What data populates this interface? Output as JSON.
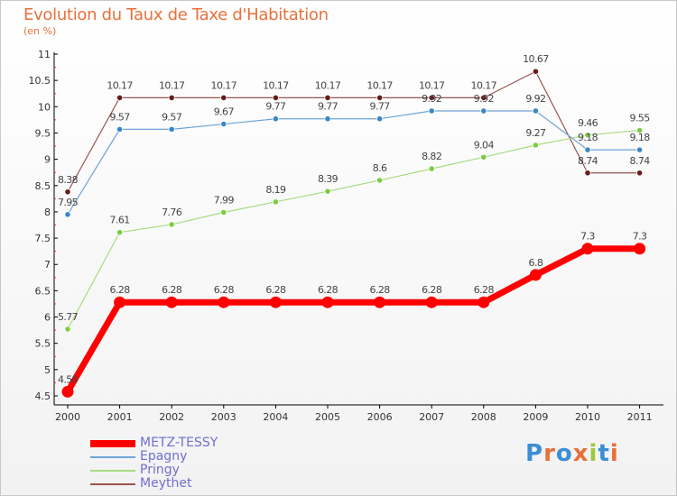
{
  "title": "Evolution du Taux de Taxe d'Habitation",
  "subtitle": "(en %)",
  "logo": {
    "text": "Proxiti",
    "colors": [
      "#3a8fd6",
      "#e8703a",
      "#3a8fd6",
      "#e8703a",
      "#9cc83a",
      "#3a8fd6",
      "#e8703a"
    ]
  },
  "chart_data": {
    "type": "line",
    "title": "Evolution du Taux de Taxe d'Habitation",
    "ylabel": "(en %)",
    "xlabel": "",
    "x": [
      "2000",
      "2001",
      "2002",
      "2003",
      "2004",
      "2005",
      "2006",
      "2007",
      "2008",
      "2009",
      "2010",
      "2011"
    ],
    "ylim": [
      4.5,
      11
    ],
    "yticks": [
      "4.5",
      "5",
      "5.5",
      "6",
      "6.5",
      "7",
      "7.5",
      "8",
      "8.5",
      "9",
      "9.5",
      "10",
      "10.5",
      "11"
    ],
    "series": [
      {
        "name": "METZ-TESSY",
        "color": "#ff0000",
        "values": [
          4.58,
          6.28,
          6.28,
          6.28,
          6.28,
          6.28,
          6.28,
          6.28,
          6.28,
          6.8,
          7.3,
          7.3
        ],
        "labels": [
          "4.58",
          "6.28",
          "6.28",
          "6.28",
          "6.28",
          "6.28",
          "6.28",
          "6.28",
          "6.28",
          "6.8",
          "7.3",
          "7.3"
        ]
      },
      {
        "name": "Epagny",
        "color": "#6fa3d8",
        "marker": "#3a86c8",
        "values": [
          7.95,
          9.57,
          9.57,
          9.67,
          9.77,
          9.77,
          9.77,
          9.92,
          9.92,
          9.92,
          9.18,
          9.18
        ],
        "labels": [
          "7.95",
          "9.57",
          "9.57",
          "9.67",
          "9.77",
          "9.77",
          "9.77",
          "9.92",
          "9.92",
          "9.92",
          "9.18",
          "9.18"
        ]
      },
      {
        "name": "Pringy",
        "color": "#a8dc80",
        "marker": "#7ccc40",
        "values": [
          5.77,
          7.61,
          7.76,
          7.99,
          8.19,
          8.39,
          8.6,
          8.82,
          9.04,
          9.27,
          9.46,
          9.55
        ],
        "labels": [
          "5.77",
          "7.61",
          "7.76",
          "7.99",
          "8.19",
          "8.39",
          "8.6",
          "8.82",
          "9.04",
          "9.27",
          "9.46",
          "9.55"
        ]
      },
      {
        "name": "Meythet",
        "color": "#9a5252",
        "marker": "#6a1a1a",
        "values": [
          8.38,
          10.17,
          10.17,
          10.17,
          10.17,
          10.17,
          10.17,
          10.17,
          10.17,
          10.67,
          8.74,
          8.74
        ],
        "labels": [
          "8.38",
          "10.17",
          "10.17",
          "10.17",
          "10.17",
          "10.17",
          "10.17",
          "10.17",
          "10.17",
          "10.67",
          "8.74",
          "8.74"
        ]
      }
    ],
    "legend": "bottom-left",
    "grid": false
  }
}
